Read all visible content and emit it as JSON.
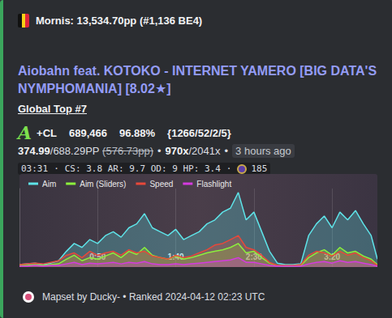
{
  "author": {
    "name": "Mornis: 13,534.70pp (#1,136 BE4)"
  },
  "title": "Aiobahn feat. KOTOKO - INTERNET YAMERO [BIG DATA'S NYMPHOMANIA] [8.02★]",
  "rank": "Global Top #7",
  "score": {
    "grade": "A",
    "mods": "+CL",
    "score": "689,466",
    "accuracy": "96.88%",
    "hits": "{1266/52/2/5}"
  },
  "performance": {
    "pp": "374.99",
    "max_pp": "/688.29PP",
    "fc_pp": "(576.73pp)",
    "separator": "•",
    "combo": "970x",
    "max_combo": "/2041x",
    "time": "3 hours ago"
  },
  "map": {
    "length": "03:31",
    "separator": "·",
    "stats": "CS: 3.8 AR: 9.7 OD: 9 HP: 3.4",
    "value": "185"
  },
  "chart_data": {
    "type": "area",
    "x": [
      0,
      5,
      10,
      15,
      20,
      25,
      30,
      35,
      40,
      45,
      50,
      55,
      60,
      65,
      70,
      75,
      80,
      85,
      90,
      95,
      100,
      105,
      110,
      115,
      120,
      125,
      130,
      135,
      140,
      145,
      150,
      155,
      160,
      165,
      170,
      175,
      180,
      185,
      190,
      195,
      200,
      205,
      210,
      215,
      220,
      225,
      229
    ],
    "xlim": [
      0,
      229
    ],
    "xticks": [
      {
        "value": 50,
        "label": "0:50"
      },
      {
        "value": 100,
        "label": "1:40"
      },
      {
        "value": 150,
        "label": "2:30"
      },
      {
        "value": 200,
        "label": "3:20"
      }
    ],
    "ylim": [
      0,
      100
    ],
    "tick_labels": "x",
    "grid": true,
    "legend": "top-left",
    "series": [
      {
        "name": "Aim",
        "color": "#5ee3e8",
        "values": [
          3,
          4,
          5,
          3,
          5,
          8,
          20,
          30,
          25,
          35,
          30,
          40,
          45,
          38,
          50,
          55,
          68,
          50,
          45,
          40,
          48,
          35,
          40,
          45,
          55,
          60,
          70,
          75,
          95,
          60,
          70,
          45,
          20,
          5,
          3,
          3,
          4,
          40,
          55,
          65,
          50,
          70,
          60,
          72,
          55,
          40,
          10
        ]
      },
      {
        "name": "Aim (Sliders)",
        "color": "#8cf03c",
        "values": [
          2,
          2,
          3,
          2,
          3,
          4,
          10,
          15,
          8,
          12,
          10,
          14,
          18,
          12,
          20,
          16,
          25,
          15,
          12,
          10,
          14,
          10,
          12,
          15,
          18,
          20,
          22,
          25,
          30,
          18,
          20,
          12,
          5,
          2,
          1,
          1,
          2,
          12,
          18,
          22,
          15,
          25,
          18,
          20,
          14,
          10,
          3
        ]
      },
      {
        "name": "Speed",
        "color": "#e8483a",
        "values": [
          3,
          4,
          5,
          4,
          6,
          8,
          15,
          18,
          12,
          20,
          15,
          18,
          20,
          15,
          22,
          18,
          20,
          14,
          12,
          10,
          15,
          12,
          14,
          18,
          22,
          28,
          30,
          35,
          40,
          25,
          22,
          15,
          6,
          2,
          2,
          2,
          3,
          15,
          20,
          18,
          14,
          20,
          15,
          18,
          12,
          8,
          2
        ]
      },
      {
        "name": "Flashlight",
        "color": "#d53ae0",
        "values": [
          1,
          1,
          2,
          1,
          2,
          2,
          4,
          6,
          3,
          5,
          4,
          5,
          6,
          4,
          6,
          5,
          7,
          4,
          3,
          3,
          4,
          3,
          4,
          5,
          6,
          7,
          8,
          9,
          12,
          6,
          6,
          4,
          2,
          1,
          1,
          1,
          1,
          4,
          6,
          7,
          5,
          8,
          6,
          7,
          5,
          3,
          1
        ]
      }
    ]
  },
  "footer": {
    "text": "Mapset by Ducky- • Ranked 2024-04-12 02:23 UTC"
  }
}
